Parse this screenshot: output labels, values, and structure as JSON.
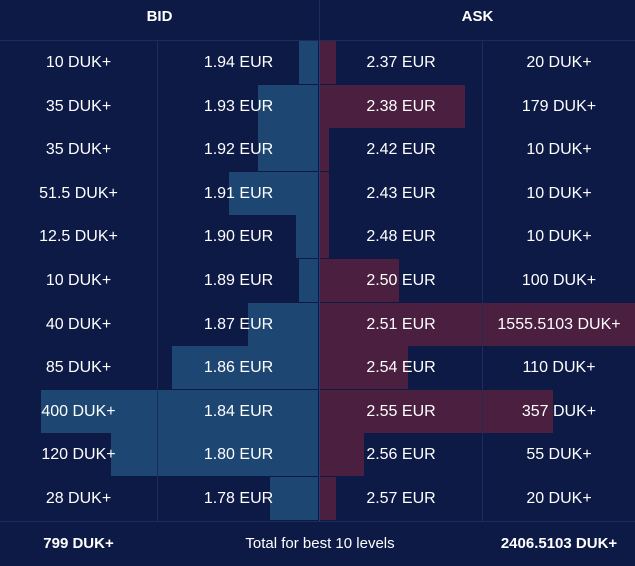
{
  "header": {
    "bid_title": "BID",
    "ask_title": "ASK"
  },
  "levels": [
    {
      "bid_volume": "10 DUK+",
      "bid_price": "1.94 EUR",
      "ask_price": "2.37 EUR",
      "ask_volume": "20 DUK+",
      "bid_depth": 0.06,
      "ask_depth": 0.05
    },
    {
      "bid_volume": "35 DUK+",
      "bid_price": "1.93 EUR",
      "ask_price": "2.38 EUR",
      "ask_volume": "179 DUK+",
      "bid_depth": 0.19,
      "ask_depth": 0.46
    },
    {
      "bid_volume": "35 DUK+",
      "bid_price": "1.92 EUR",
      "ask_price": "2.42 EUR",
      "ask_volume": "10 DUK+",
      "bid_depth": 0.19,
      "ask_depth": 0.03
    },
    {
      "bid_volume": "51.5 DUK+",
      "bid_price": "1.91 EUR",
      "ask_price": "2.43 EUR",
      "ask_volume": "10 DUK+",
      "bid_depth": 0.28,
      "ask_depth": 0.03
    },
    {
      "bid_volume": "12.5 DUK+",
      "bid_price": "1.90 EUR",
      "ask_price": "2.48 EUR",
      "ask_volume": "10 DUK+",
      "bid_depth": 0.07,
      "ask_depth": 0.03
    },
    {
      "bid_volume": "10 DUK+",
      "bid_price": "1.89 EUR",
      "ask_price": "2.50 EUR",
      "ask_volume": "100 DUK+",
      "bid_depth": 0.06,
      "ask_depth": 0.25
    },
    {
      "bid_volume": "40 DUK+",
      "bid_price": "1.87 EUR",
      "ask_price": "2.51 EUR",
      "ask_volume": "1555.5103 DUK+",
      "bid_depth": 0.22,
      "ask_depth": 1.0
    },
    {
      "bid_volume": "85 DUK+",
      "bid_price": "1.86 EUR",
      "ask_price": "2.54 EUR",
      "ask_volume": "110 DUK+",
      "bid_depth": 0.46,
      "ask_depth": 0.28
    },
    {
      "bid_volume": "400 DUK+",
      "bid_price": "1.84 EUR",
      "ask_price": "2.55 EUR",
      "ask_volume": "357 DUK+",
      "bid_depth": 0.87,
      "ask_depth": 0.74
    },
    {
      "bid_volume": "120 DUK+",
      "bid_price": "1.80 EUR",
      "ask_price": "2.56 EUR",
      "ask_volume": "55 DUK+",
      "bid_depth": 0.65,
      "ask_depth": 0.14
    },
    {
      "bid_volume": "28 DUK+",
      "bid_price": "1.78 EUR",
      "ask_price": "2.57 EUR",
      "ask_volume": "20 DUK+",
      "bid_depth": 0.15,
      "ask_depth": 0.05
    }
  ],
  "footer": {
    "bid_total": "799 DUK+",
    "label": "Total for best 10 levels",
    "ask_total": "2406.5103 DUK+"
  },
  "colors": {
    "background": "#0d1a45",
    "bid_bar": "#1d4673",
    "ask_bar": "#4a1f3f"
  }
}
